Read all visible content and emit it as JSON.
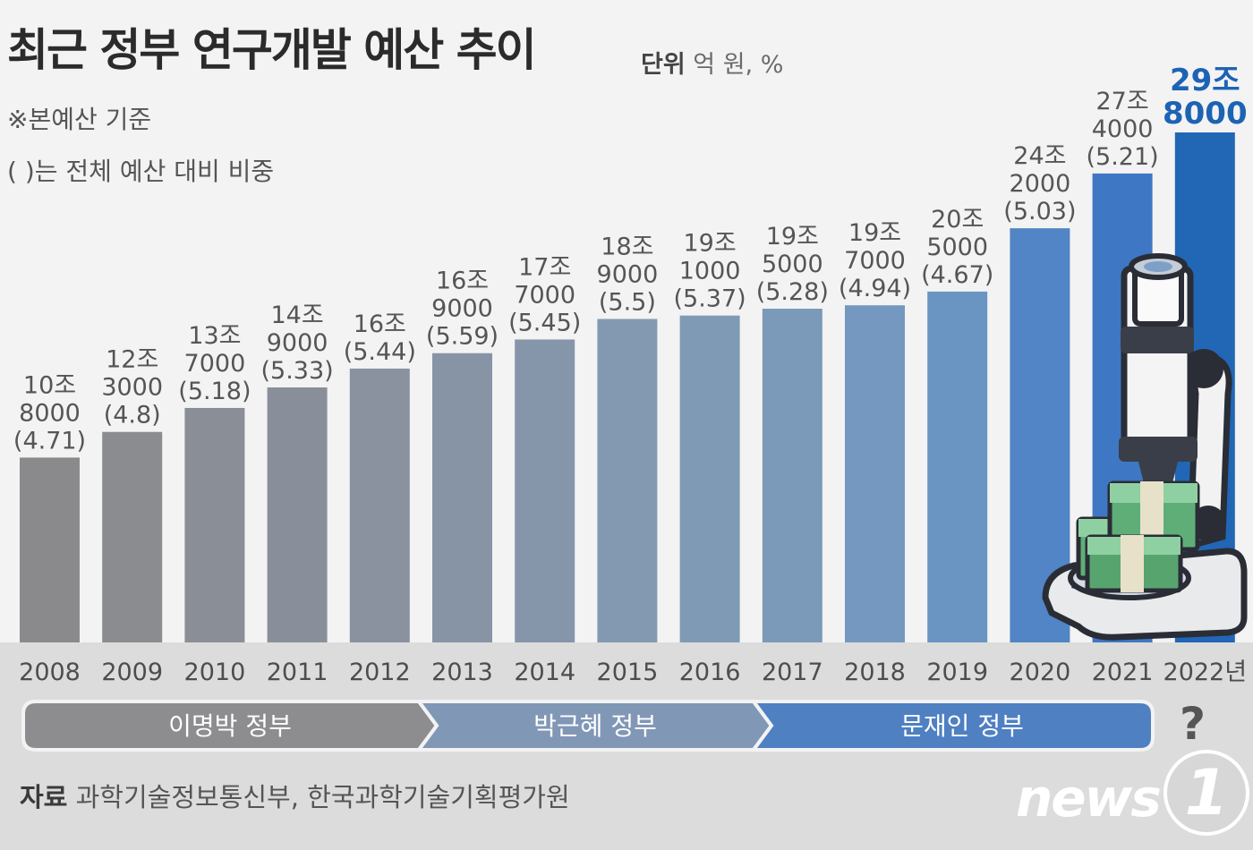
{
  "header": {
    "title": "최근 정부 연구개발 예산 추이",
    "unit_label": "단위",
    "unit_value": "억 원, %",
    "note1": "※본예산 기준",
    "note2": "( )는 전체 예산 대비 비중"
  },
  "chart_data": {
    "type": "bar",
    "categories": [
      "2008",
      "2009",
      "2010",
      "2011",
      "2012",
      "2013",
      "2014",
      "2015",
      "2016",
      "2017",
      "2018",
      "2019",
      "2020",
      "2021",
      "2022년"
    ],
    "values": [
      108000,
      123000,
      137000,
      149000,
      160000,
      169000,
      177000,
      189000,
      191000,
      195000,
      197000,
      205000,
      242000,
      274000,
      298000
    ],
    "share_percent": [
      4.71,
      4.8,
      5.18,
      5.33,
      5.44,
      5.59,
      5.45,
      5.5,
      5.37,
      5.28,
      4.94,
      4.67,
      5.03,
      5.21,
      null
    ],
    "value_labels": [
      [
        "10조",
        "8000",
        "(4.71)"
      ],
      [
        "12조",
        "3000",
        "(4.8)"
      ],
      [
        "13조",
        "7000",
        "(5.18)"
      ],
      [
        "14조",
        "9000",
        "(5.33)"
      ],
      [
        "16조",
        "(5.44)"
      ],
      [
        "16조",
        "9000",
        "(5.59)"
      ],
      [
        "17조",
        "7000",
        "(5.45)"
      ],
      [
        "18조",
        "9000",
        "(5.5)"
      ],
      [
        "19조",
        "1000",
        "(5.37)"
      ],
      [
        "19조",
        "5000",
        "(5.28)"
      ],
      [
        "19조",
        "7000",
        "(4.94)"
      ],
      [
        "20조",
        "5000",
        "(4.67)"
      ],
      [
        "24조",
        "2000",
        "(5.03)"
      ],
      [
        "27조",
        "4000",
        "(5.21)"
      ],
      [
        "29조",
        "8000"
      ]
    ],
    "bar_colors": [
      "#8a8a8c",
      "#8a8c90",
      "#8a8e96",
      "#898f9a",
      "#8a92a0",
      "#8794a6",
      "#8696aa",
      "#8399b1",
      "#7f9ab5",
      "#7b9aba",
      "#7498bf",
      "#6a95c2",
      "#5185c5",
      "#3e77c4",
      "#2266b6"
    ]
  },
  "governments": [
    {
      "label": "이명박 정부",
      "color": "#8d8d90"
    },
    {
      "label": "박근혜 정부",
      "color": "#8197b6"
    },
    {
      "label": "문재인 정부",
      "color": "#4e80c2"
    }
  ],
  "unknown_mark": "?",
  "footer": {
    "source_label": "자료",
    "source_text": "과학기술정보통신부, 한국과학기술기획평가원",
    "logo_text": "news",
    "logo_one": "1"
  }
}
